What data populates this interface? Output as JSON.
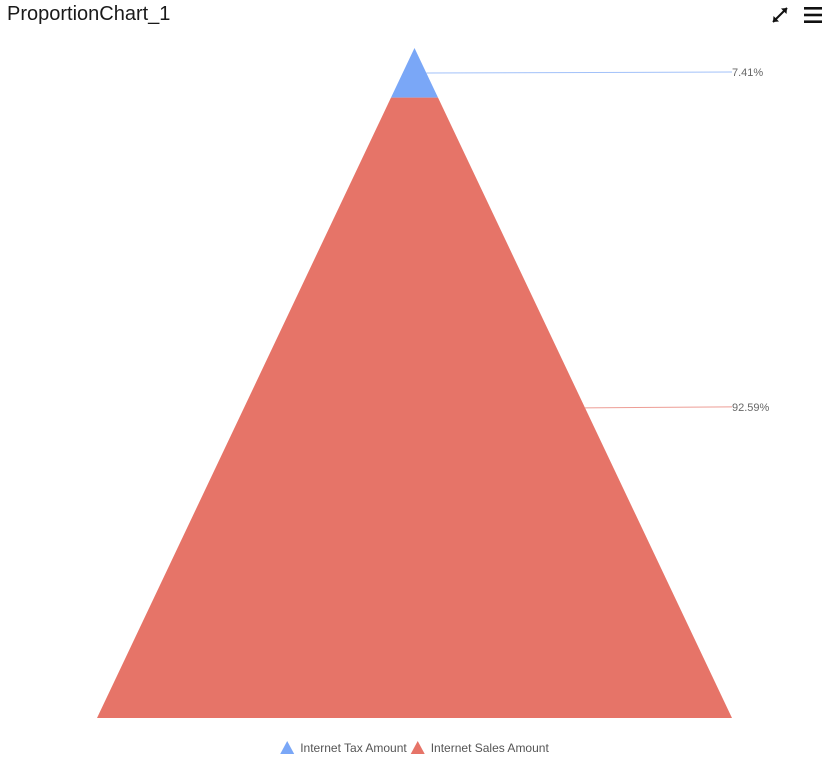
{
  "widget": {
    "title": "ProportionChart_1",
    "maximize_icon": "expand-arrows-icon",
    "menu_icon": "hamburger-menu-icon"
  },
  "chart_data": {
    "type": "pyramid",
    "title": "",
    "series": [
      {
        "name": "Internet Tax Amount",
        "percent": 7.41,
        "label": "7.41%",
        "color": "#7aa7f7"
      },
      {
        "name": "Internet Sales Amount",
        "percent": 92.59,
        "label": "92.59%",
        "color": "#e67468"
      }
    ],
    "legend_position": "bottom-center",
    "grid": false
  }
}
